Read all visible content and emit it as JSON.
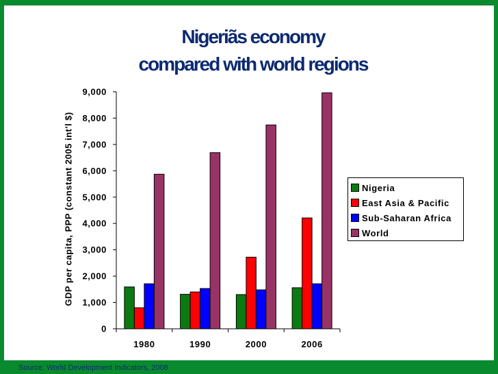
{
  "slide": {
    "title_line1": "Nigeria\u0000s economy",
    "title_line2": "compared with world regions",
    "source": "Source: World Development Indicators, 2008",
    "frame_color": "#0a8a2e",
    "title_color": "#0c2a70"
  },
  "chart_data": {
    "type": "bar",
    "title": "",
    "xlabel": "",
    "ylabel": "GDP per capita, PPP (constant 2005 int'l $)",
    "ylim": [
      0,
      9000
    ],
    "yticks": [
      0,
      1000,
      2000,
      3000,
      4000,
      5000,
      6000,
      7000,
      8000,
      9000
    ],
    "ytick_labels": [
      "0",
      "1,000",
      "2,000",
      "3,000",
      "4,000",
      "5,000",
      "6,000",
      "7,000",
      "8,000",
      "9,000"
    ],
    "categories": [
      "1980",
      "1990",
      "2000",
      "2006"
    ],
    "legend_position": "right",
    "grid": false,
    "series": [
      {
        "name": "Nigeria",
        "color": "#0b7a12",
        "values": [
          1590,
          1310,
          1300,
          1560
        ]
      },
      {
        "name": "East Asia & Pacific",
        "color": "#ff0000",
        "values": [
          800,
          1400,
          2720,
          4210
        ]
      },
      {
        "name": "Sub-Saharan Africa",
        "color": "#0000ff",
        "values": [
          1710,
          1530,
          1480,
          1710
        ]
      },
      {
        "name": "World",
        "color": "#993366",
        "values": [
          5870,
          6690,
          7740,
          8960
        ]
      }
    ]
  }
}
